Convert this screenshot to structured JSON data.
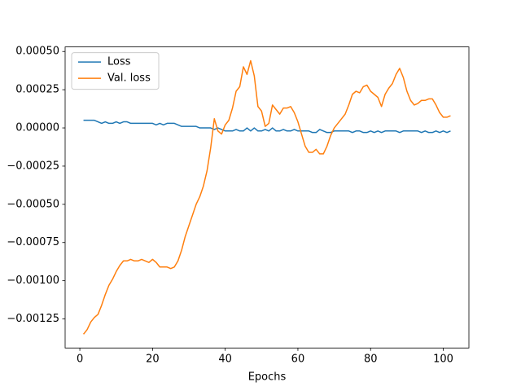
{
  "chart_data": {
    "type": "line",
    "xlabel": "Epochs",
    "x": [
      1,
      2,
      3,
      4,
      5,
      6,
      7,
      8,
      9,
      10,
      11,
      12,
      13,
      14,
      15,
      16,
      17,
      18,
      19,
      20,
      21,
      22,
      23,
      24,
      25,
      26,
      27,
      28,
      29,
      30,
      31,
      32,
      33,
      34,
      35,
      36,
      37,
      38,
      39,
      40,
      41,
      42,
      43,
      44,
      45,
      46,
      47,
      48,
      49,
      50,
      51,
      52,
      53,
      54,
      55,
      56,
      57,
      58,
      59,
      60,
      61,
      62,
      63,
      64,
      65,
      66,
      67,
      68,
      69,
      70,
      71,
      72,
      73,
      74,
      75,
      76,
      77,
      78,
      79,
      80,
      81,
      82,
      83,
      84,
      85,
      86,
      87,
      88,
      89,
      90,
      91,
      92,
      93,
      94,
      95,
      96,
      97,
      98,
      99,
      100,
      101,
      102
    ],
    "series": [
      {
        "name": "Loss",
        "color": "#1f77b4",
        "values": [
          5e-05,
          5e-05,
          5e-05,
          5e-05,
          4e-05,
          3e-05,
          4e-05,
          3e-05,
          3e-05,
          4e-05,
          3e-05,
          4e-05,
          4e-05,
          3e-05,
          3e-05,
          3e-05,
          3e-05,
          3e-05,
          3e-05,
          3e-05,
          2e-05,
          3e-05,
          2e-05,
          3e-05,
          3e-05,
          3e-05,
          2e-05,
          1e-05,
          1e-05,
          1e-05,
          1e-05,
          1e-05,
          0.0,
          0.0,
          0.0,
          0.0,
          -1e-05,
          0.0,
          -1e-05,
          -2e-05,
          -2e-05,
          -2e-05,
          -1e-05,
          -2e-05,
          -2e-05,
          0.0,
          -2e-05,
          0.0,
          -2e-05,
          -2e-05,
          -1e-05,
          -2e-05,
          0.0,
          -2e-05,
          -2e-05,
          -1e-05,
          -2e-05,
          -2e-05,
          -1e-05,
          -2e-05,
          -2e-05,
          -2e-05,
          -2e-05,
          -3e-05,
          -3e-05,
          -1e-05,
          -2e-05,
          -3e-05,
          -3e-05,
          -2e-05,
          -2e-05,
          -2e-05,
          -2e-05,
          -2e-05,
          -3e-05,
          -2e-05,
          -2e-05,
          -3e-05,
          -3e-05,
          -2e-05,
          -3e-05,
          -2e-05,
          -3e-05,
          -2e-05,
          -2e-05,
          -2e-05,
          -2e-05,
          -3e-05,
          -2e-05,
          -2e-05,
          -2e-05,
          -2e-05,
          -2e-05,
          -3e-05,
          -2e-05,
          -3e-05,
          -3e-05,
          -2e-05,
          -3e-05,
          -2e-05,
          -3e-05,
          -2e-05
        ]
      },
      {
        "name": "Val. loss",
        "color": "#ff7f0e",
        "values": [
          -0.00135,
          -0.00132,
          -0.00127,
          -0.00124,
          -0.00122,
          -0.00116,
          -0.00109,
          -0.00103,
          -0.00099,
          -0.00094,
          -0.0009,
          -0.00087,
          -0.00087,
          -0.00086,
          -0.00087,
          -0.00087,
          -0.00086,
          -0.00087,
          -0.00088,
          -0.00086,
          -0.00088,
          -0.00091,
          -0.00091,
          -0.00091,
          -0.00092,
          -0.00091,
          -0.00087,
          -0.0008,
          -0.00071,
          -0.00064,
          -0.00057,
          -0.0005,
          -0.00045,
          -0.00038,
          -0.00028,
          -0.00013,
          6e-05,
          -2e-05,
          -4e-05,
          2e-05,
          5e-05,
          0.00013,
          0.00024,
          0.00027,
          0.0004,
          0.00035,
          0.00044,
          0.00034,
          0.00014,
          0.00011,
          1e-05,
          3e-05,
          0.00015,
          0.00012,
          9e-05,
          0.00013,
          0.00013,
          0.00014,
          0.0001,
          4e-05,
          -4e-05,
          -0.00012,
          -0.00016,
          -0.00016,
          -0.00014,
          -0.00017,
          -0.00017,
          -0.00012,
          -5e-05,
          0.0,
          3e-05,
          6e-05,
          9e-05,
          0.00015,
          0.00022,
          0.00024,
          0.00023,
          0.00027,
          0.00028,
          0.00024,
          0.00022,
          0.0002,
          0.00014,
          0.00022,
          0.00026,
          0.00029,
          0.00035,
          0.00039,
          0.00033,
          0.00024,
          0.00018,
          0.00015,
          0.00016,
          0.00018,
          0.00018,
          0.00019,
          0.00019,
          0.00015,
          0.0001,
          7e-05,
          7e-05,
          8e-05
        ]
      }
    ],
    "xlim": [
      -4.05,
      107.05
    ],
    "xticks": [
      0,
      20,
      40,
      60,
      80,
      100
    ],
    "ylim": [
      -0.00144,
      0.00053
    ],
    "yticks": [
      {
        "value": 0.0005,
        "label": "0.00050"
      },
      {
        "value": 0.00025,
        "label": "0.00025"
      },
      {
        "value": 0,
        "label": "0.00000"
      },
      {
        "value": -0.00025,
        "label": "−0.00025"
      },
      {
        "value": -0.0005,
        "label": "−0.00050"
      },
      {
        "value": -0.00075,
        "label": "−0.00075"
      },
      {
        "value": -0.001,
        "label": "−0.00100"
      },
      {
        "value": -0.00125,
        "label": "−0.00125"
      }
    ],
    "legend": "upper left"
  }
}
